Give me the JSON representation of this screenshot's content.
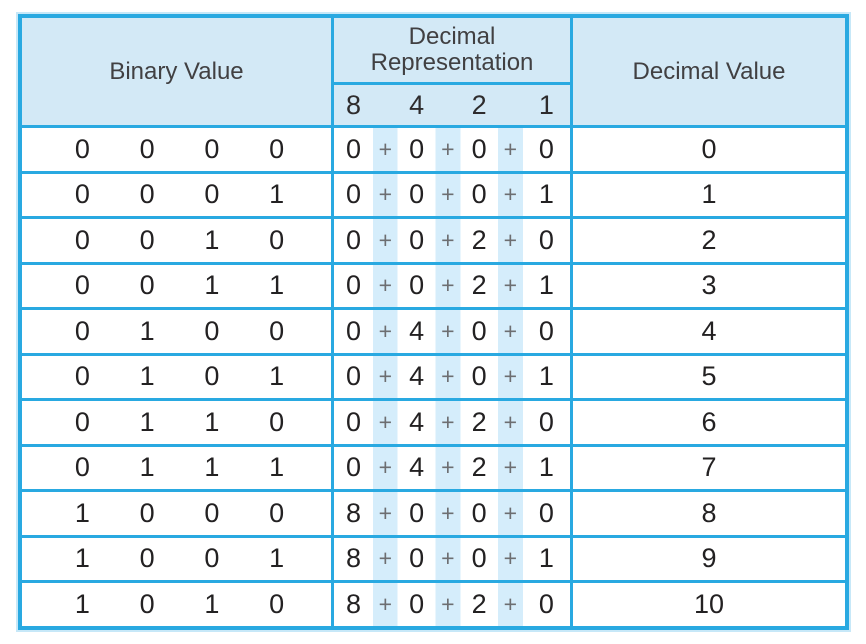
{
  "table": {
    "headers": {
      "binary": "Binary Value",
      "decimal_representation": "Decimal Representation",
      "weights": [
        "8",
        "4",
        "2",
        "1"
      ],
      "decimal_value": "Decimal Value"
    },
    "plus_sign": "+",
    "colors": {
      "border": "#29a9e1",
      "header_bg": "#d3e9f6",
      "stripe": "#d5edfb",
      "digit_text": "#232122",
      "plus_text": "#6d6e71",
      "header_text": "#414042"
    },
    "rows": [
      {
        "bits": [
          "0",
          "0",
          "0",
          "0"
        ],
        "terms": [
          "0",
          "0",
          "0",
          "0"
        ],
        "value": "0"
      },
      {
        "bits": [
          "0",
          "0",
          "0",
          "1"
        ],
        "terms": [
          "0",
          "0",
          "0",
          "1"
        ],
        "value": "1"
      },
      {
        "bits": [
          "0",
          "0",
          "1",
          "0"
        ],
        "terms": [
          "0",
          "0",
          "2",
          "0"
        ],
        "value": "2"
      },
      {
        "bits": [
          "0",
          "0",
          "1",
          "1"
        ],
        "terms": [
          "0",
          "0",
          "2",
          "1"
        ],
        "value": "3"
      },
      {
        "bits": [
          "0",
          "1",
          "0",
          "0"
        ],
        "terms": [
          "0",
          "4",
          "0",
          "0"
        ],
        "value": "4"
      },
      {
        "bits": [
          "0",
          "1",
          "0",
          "1"
        ],
        "terms": [
          "0",
          "4",
          "0",
          "1"
        ],
        "value": "5"
      },
      {
        "bits": [
          "0",
          "1",
          "1",
          "0"
        ],
        "terms": [
          "0",
          "4",
          "2",
          "0"
        ],
        "value": "6"
      },
      {
        "bits": [
          "0",
          "1",
          "1",
          "1"
        ],
        "terms": [
          "0",
          "4",
          "2",
          "1"
        ],
        "value": "7"
      },
      {
        "bits": [
          "1",
          "0",
          "0",
          "0"
        ],
        "terms": [
          "8",
          "0",
          "0",
          "0"
        ],
        "value": "8"
      },
      {
        "bits": [
          "1",
          "0",
          "0",
          "1"
        ],
        "terms": [
          "8",
          "0",
          "0",
          "1"
        ],
        "value": "9"
      },
      {
        "bits": [
          "1",
          "0",
          "1",
          "0"
        ],
        "terms": [
          "8",
          "0",
          "2",
          "0"
        ],
        "value": "10"
      }
    ]
  }
}
